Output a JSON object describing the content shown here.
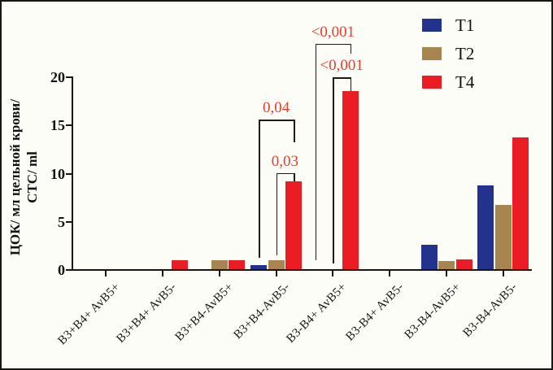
{
  "figure": {
    "background": "#fdfdf7",
    "border_color": "#161616"
  },
  "chart_data": {
    "type": "bar",
    "title": "",
    "xlabel": "",
    "ylabel_lines": [
      "ЦОК/ мл цельной крови/",
      "СТС/ ml"
    ],
    "ylim": [
      0,
      20
    ],
    "yticks": [
      0,
      5,
      10,
      15,
      20
    ],
    "grid": false,
    "legend_position": "top-right",
    "categories": [
      "B3+B4+ AvB5+",
      "B3+B4+ AvB5-",
      "B3+B4-AvB5+",
      "B3+B4-AvB5-",
      "B3-B4+ AvB5+",
      "B3-B4+ AvB5-",
      "B3-B4-AvB5+",
      "B3-B4-AvB5-"
    ],
    "series": [
      {
        "name": "T1",
        "color": "#23338d",
        "values": [
          0,
          0,
          0,
          0.45,
          0,
          0,
          2.5,
          8.7
        ]
      },
      {
        "name": "T2",
        "color": "#a8854e",
        "values": [
          0,
          0,
          0.9,
          0.9,
          0,
          0,
          0.85,
          6.7
        ]
      },
      {
        "name": "T4",
        "color": "#ec1c24",
        "values": [
          0,
          0.9,
          0.9,
          9.1,
          18.5,
          0,
          1.0,
          13.7
        ]
      }
    ],
    "annotation_color": "#ee3a28",
    "annotations": [
      {
        "label": "0,04",
        "group": 3,
        "from_series": 0,
        "to_series": 2,
        "bar_y": 15.5,
        "from_leg_end": 1.2,
        "to_leg_end": 13.2
      },
      {
        "label": "0,03",
        "group": 3,
        "from_series": 1,
        "to_series": 2,
        "bar_y": 10.0,
        "from_leg_end": 1.4,
        "to_leg_end": 9.1
      },
      {
        "label": "<0,001",
        "group": 4,
        "from_series": 0,
        "to_series": 2,
        "bar_y": 23.4,
        "from_leg_end": 0.9,
        "to_leg_end": 22.4
      },
      {
        "label": "<0,001",
        "group": 4,
        "from_series": 1,
        "to_series": 2,
        "bar_y": 19.9,
        "from_leg_end": 0.6,
        "to_leg_end": 18.5
      }
    ]
  }
}
